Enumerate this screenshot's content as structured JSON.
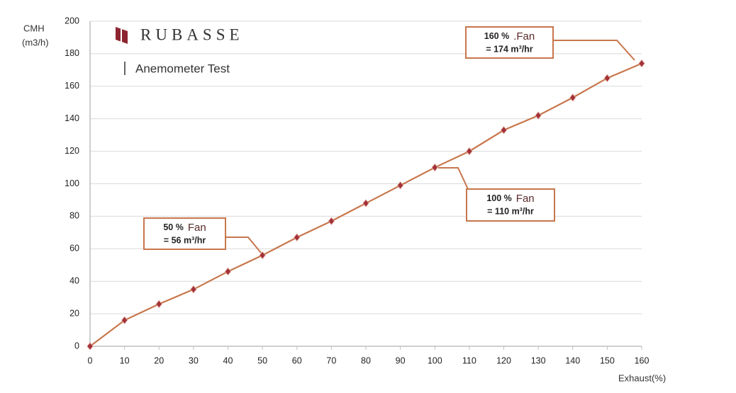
{
  "chart_data": {
    "type": "line",
    "brand": "RUBASSE",
    "title": "Anemometer Test",
    "y_label": [
      "CMH",
      "(m3/h)"
    ],
    "x_label": "Exhaust(%)",
    "x": [
      0,
      10,
      20,
      30,
      40,
      50,
      60,
      70,
      80,
      90,
      100,
      110,
      120,
      130,
      140,
      150,
      160
    ],
    "values": [
      0,
      16,
      26,
      35,
      46,
      56,
      67,
      77,
      88,
      99,
      110,
      120,
      133,
      142,
      153,
      165,
      174
    ],
    "color": "#c8764c",
    "marker_color": "#a3303a",
    "xlim": [
      0,
      160
    ],
    "ylim": [
      0,
      200
    ],
    "xticks": [
      0,
      10,
      20,
      30,
      40,
      50,
      60,
      70,
      80,
      90,
      100,
      110,
      120,
      130,
      140,
      150,
      160
    ],
    "yticks": [
      0,
      20,
      40,
      60,
      80,
      100,
      120,
      140,
      160,
      180,
      200
    ],
    "grid": true,
    "annotations": [
      {
        "percent": "50 %",
        "fan": "Fan",
        "flow": "= 56 m³/hr"
      },
      {
        "percent": "100 %",
        "fan": "Fan",
        "flow": "= 110 m³/hr"
      },
      {
        "percent": "160 %",
        "fan": ".Fan",
        "flow": "= 174 m³/hr"
      }
    ]
  }
}
